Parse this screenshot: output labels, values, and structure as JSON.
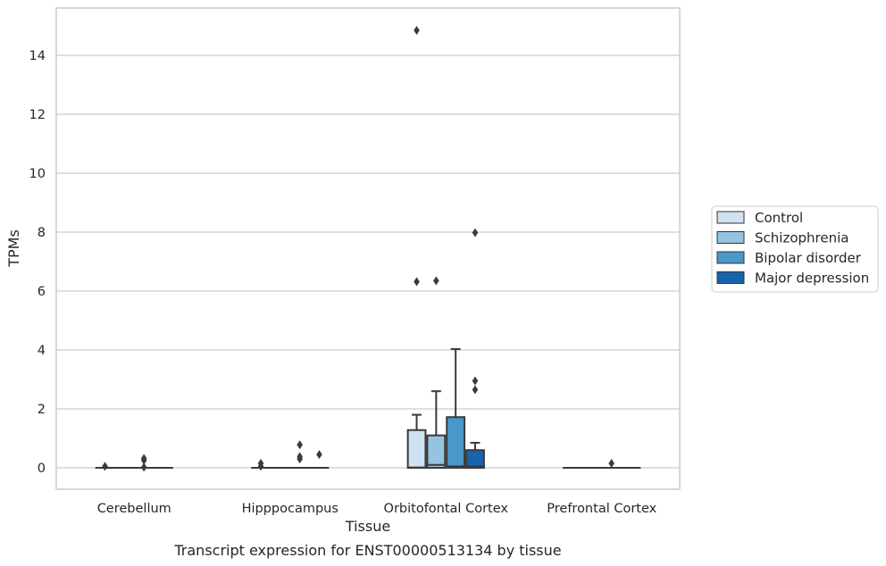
{
  "chart_data": {
    "type": "box",
    "title": "Transcript expression for ENST00000513134 by tissue",
    "xlabel": "Tissue",
    "ylabel": "TPMs",
    "ylim": [
      -0.7,
      15.4
    ],
    "yticks": [
      0,
      2,
      4,
      6,
      8,
      10,
      12,
      14
    ],
    "grid": true,
    "legend_position": "right",
    "categories": [
      "Cerebellum",
      "Hipppocampus",
      "Orbitofontal Cortex",
      "Prefrontal Cortex"
    ],
    "series": [
      {
        "name": "Control",
        "color": "#d0e1f2",
        "boxes": [
          {
            "q1": 0,
            "median": 0,
            "q3": 0,
            "whisker_low": 0,
            "whisker_high": 0,
            "outliers": [
              0.05
            ]
          },
          {
            "q1": 0,
            "median": 0,
            "q3": 0,
            "whisker_low": 0,
            "whisker_high": 0,
            "outliers": [
              0.05,
              0.15
            ]
          },
          {
            "q1": 0,
            "median": 0.01,
            "q3": 1.28,
            "whisker_low": 0,
            "whisker_high": 1.8,
            "outliers": [
              6.32,
              14.85
            ]
          },
          {
            "q1": 0,
            "median": 0,
            "q3": 0,
            "whisker_low": 0,
            "whisker_high": 0,
            "outliers": []
          }
        ]
      },
      {
        "name": "Schizophrenia",
        "color": "#94c4df",
        "boxes": [
          {
            "q1": 0,
            "median": 0,
            "q3": 0,
            "whisker_low": 0,
            "whisker_high": 0,
            "outliers": []
          },
          {
            "q1": 0,
            "median": 0,
            "q3": 0,
            "whisker_low": 0,
            "whisker_high": 0,
            "outliers": []
          },
          {
            "q1": 0,
            "median": 0.1,
            "q3": 1.1,
            "whisker_low": 0,
            "whisker_high": 2.6,
            "outliers": [
              6.35
            ]
          },
          {
            "q1": 0,
            "median": 0,
            "q3": 0,
            "whisker_low": 0,
            "whisker_high": 0,
            "outliers": []
          }
        ]
      },
      {
        "name": "Bipolar disorder",
        "color": "#4a98c9",
        "boxes": [
          {
            "q1": 0,
            "median": 0,
            "q3": 0,
            "whisker_low": 0,
            "whisker_high": 0,
            "outliers": [
              0.02,
              0.25,
              0.32
            ]
          },
          {
            "q1": 0,
            "median": 0,
            "q3": 0,
            "whisker_low": 0,
            "whisker_high": 0,
            "outliers": [
              0.3,
              0.38,
              0.78
            ]
          },
          {
            "q1": 0,
            "median": 0.05,
            "q3": 1.72,
            "whisker_low": 0,
            "whisker_high": 4.03,
            "outliers": []
          },
          {
            "q1": 0,
            "median": 0,
            "q3": 0,
            "whisker_low": 0,
            "whisker_high": 0,
            "outliers": [
              0.15
            ]
          }
        ]
      },
      {
        "name": "Major depression",
        "color": "#1764ab",
        "boxes": [
          {
            "q1": 0,
            "median": 0,
            "q3": 0,
            "whisker_low": 0,
            "whisker_high": 0,
            "outliers": []
          },
          {
            "q1": 0,
            "median": 0,
            "q3": 0,
            "whisker_low": 0,
            "whisker_high": 0,
            "outliers": [
              0.45
            ]
          },
          {
            "q1": 0,
            "median": 0.05,
            "q3": 0.6,
            "whisker_low": 0,
            "whisker_high": 0.85,
            "outliers": [
              2.65,
              2.95,
              7.98
            ]
          },
          {
            "q1": 0,
            "median": 0,
            "q3": 0,
            "whisker_low": 0,
            "whisker_high": 0,
            "outliers": []
          }
        ]
      }
    ]
  }
}
